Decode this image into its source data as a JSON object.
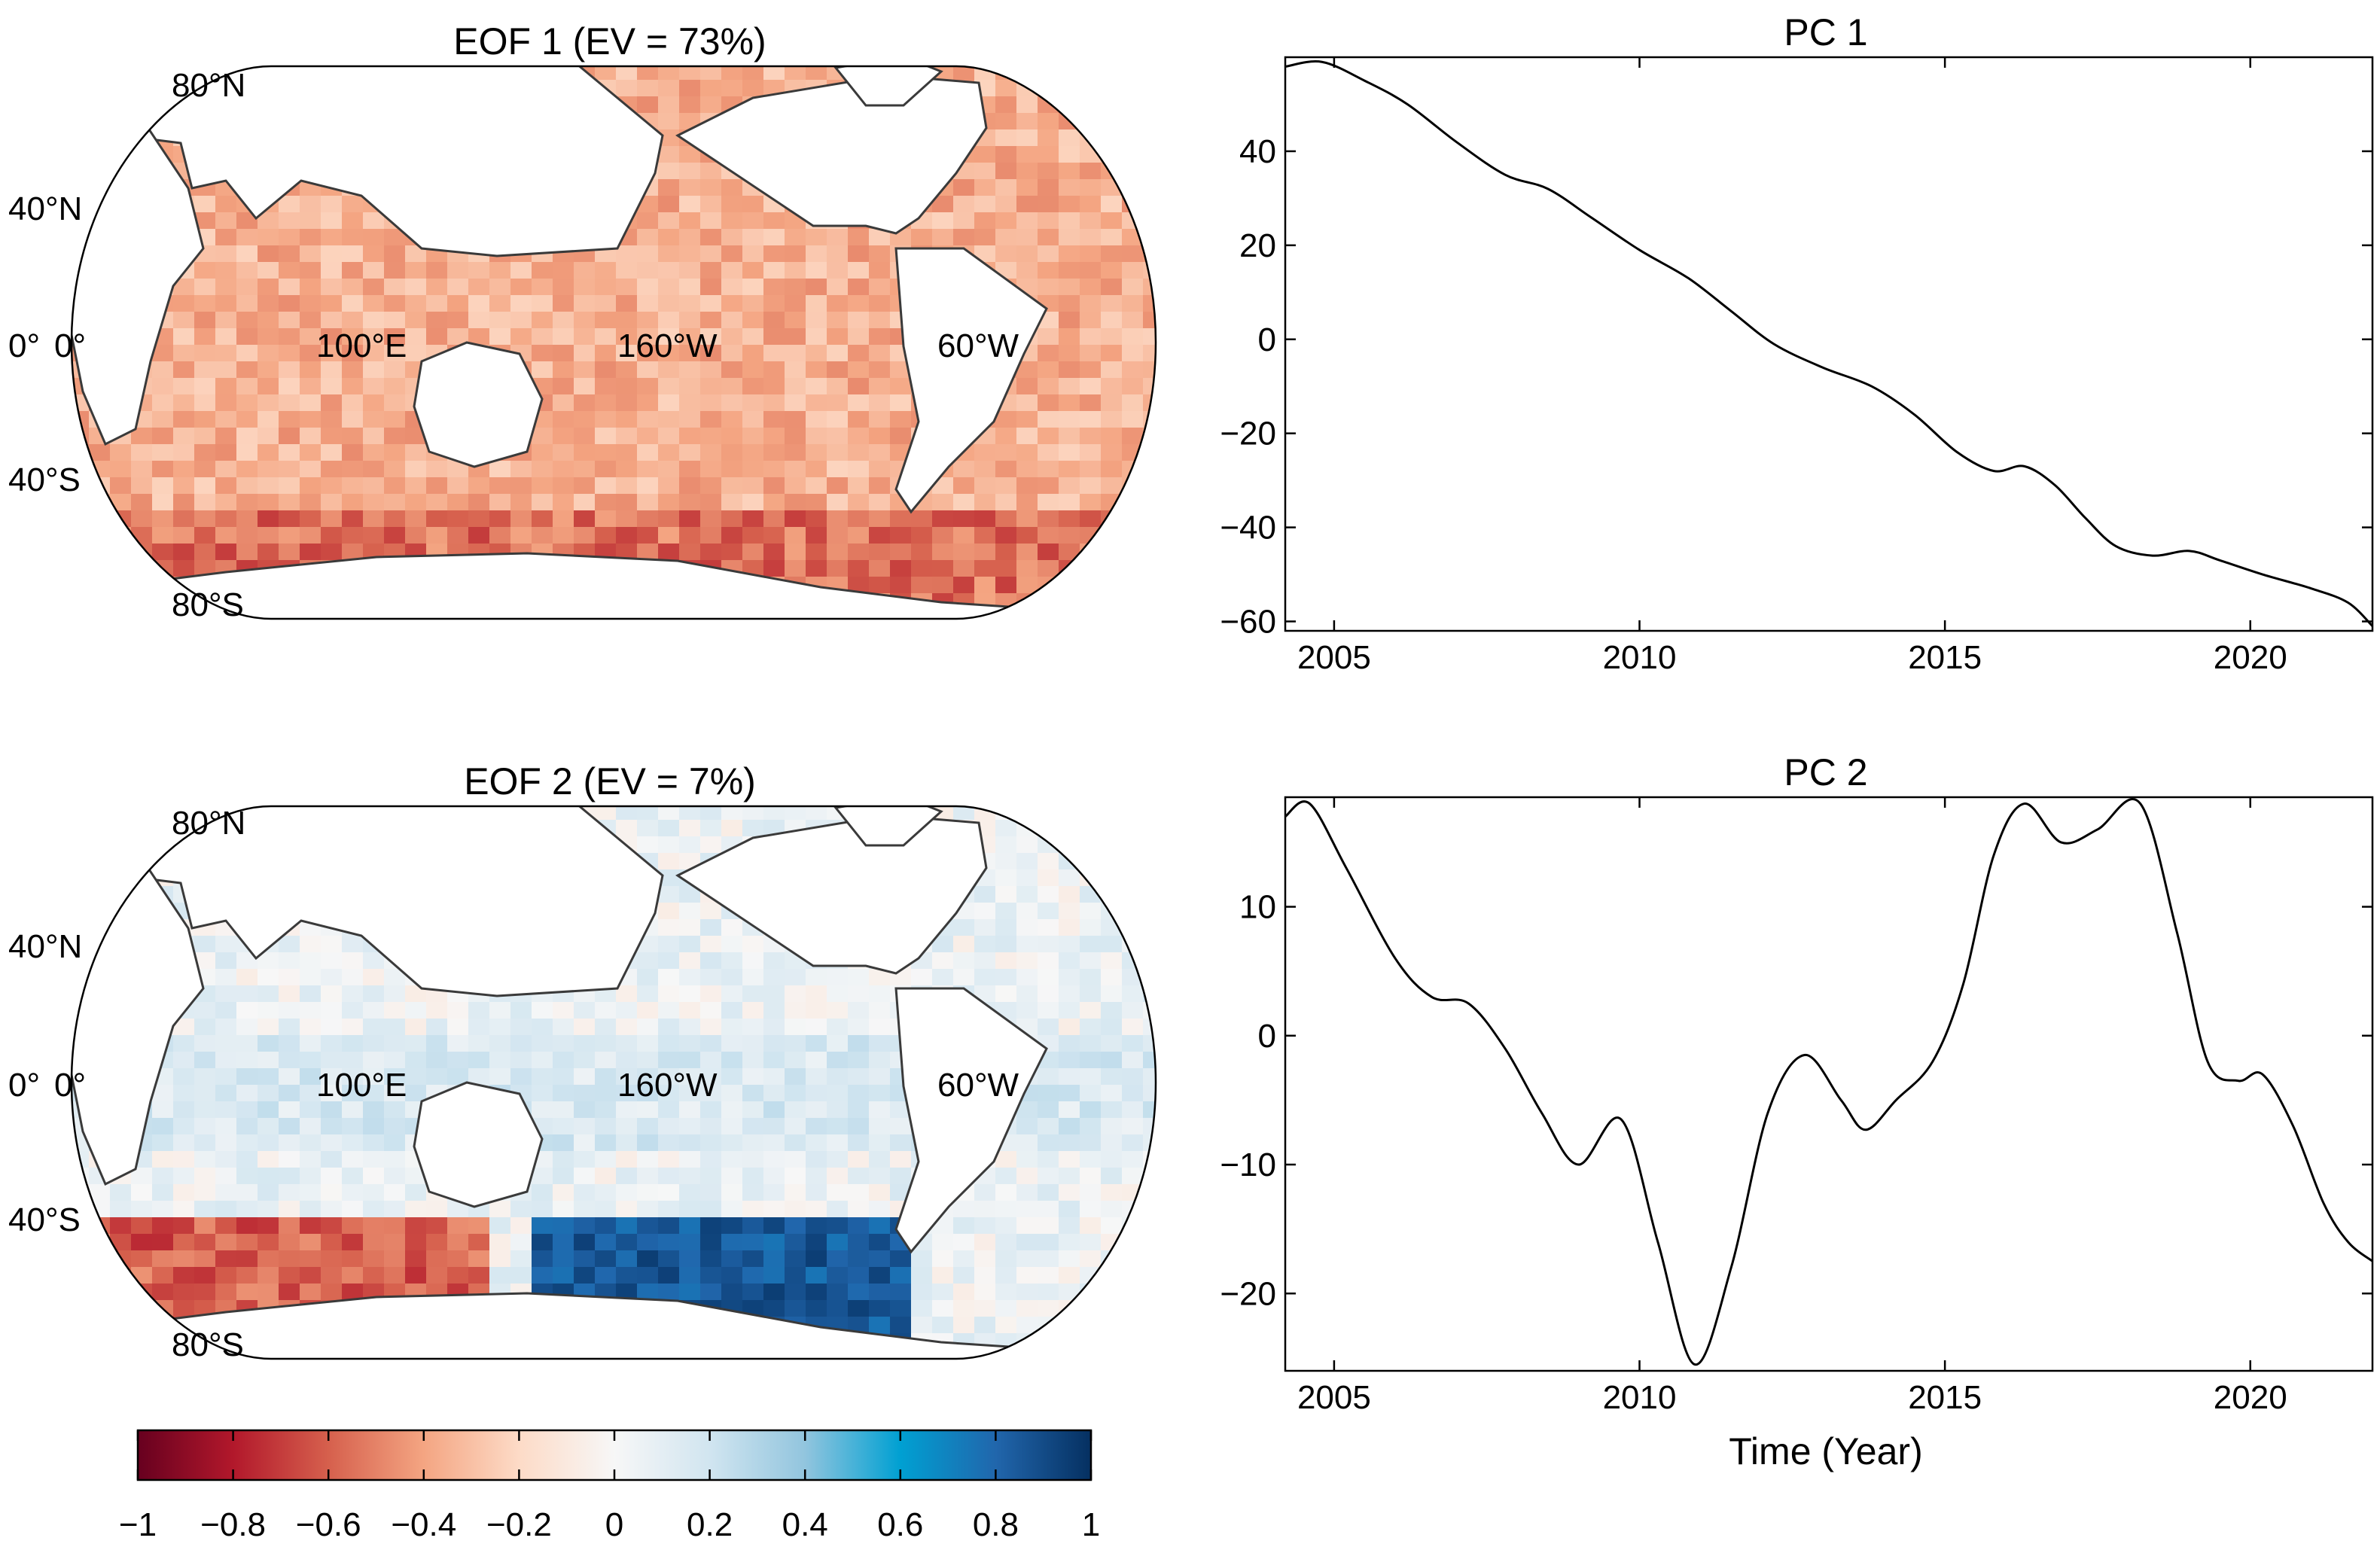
{
  "chart_data": [
    {
      "type": "map",
      "title": "EOF 1 (EV = 73%)",
      "lat_labels": [
        "80°N",
        "40°N",
        "0°",
        "40°S",
        "80°S"
      ],
      "lon_labels": [
        "0°",
        "100°E",
        "160°W",
        "60°W"
      ],
      "ocean_mean": -0.35,
      "colormap": "red-white-blue"
    },
    {
      "type": "map",
      "title": "EOF 2 (EV = 7%)",
      "lat_labels": [
        "80°N",
        "40°N",
        "0°",
        "40°S",
        "80°S"
      ],
      "lon_labels": [
        "0°",
        "100°E",
        "160°W",
        "60°W"
      ],
      "ocean_mean": 0.05,
      "colormap": "red-white-blue"
    },
    {
      "type": "line",
      "title": "PC 1",
      "xlabel": "",
      "ylabel": "",
      "xlim": [
        2004.2,
        2022
      ],
      "ylim": [
        -62,
        60
      ],
      "xticks": [
        2005,
        2010,
        2015,
        2020
      ],
      "yticks": [
        -60,
        -40,
        -20,
        0,
        20,
        40
      ],
      "x": [
        2004.2,
        2004.8,
        2005.5,
        2006.2,
        2007,
        2007.8,
        2008.5,
        2009.2,
        2010,
        2010.8,
        2011.5,
        2012.2,
        2013,
        2013.8,
        2014.5,
        2015.2,
        2015.8,
        2016.3,
        2016.8,
        2017.3,
        2017.8,
        2018.4,
        2019,
        2019.5,
        2020.2,
        2021,
        2021.6,
        2022
      ],
      "y": [
        58,
        59,
        55,
        50,
        42,
        35,
        32,
        26,
        19,
        13,
        6,
        -1,
        -6,
        -10,
        -16,
        -24,
        -28,
        -27,
        -31,
        -38,
        -44,
        -46,
        -45,
        -47,
        -50,
        -53,
        -56,
        -61
      ]
    },
    {
      "type": "line",
      "title": "PC 2",
      "xlabel": "Time (Year)",
      "ylabel": "",
      "xlim": [
        2004.2,
        2022
      ],
      "ylim": [
        -26,
        18.5
      ],
      "xticks": [
        2005,
        2010,
        2015,
        2020
      ],
      "yticks": [
        -20,
        -10,
        0,
        10
      ],
      "x": [
        2004.2,
        2004.6,
        2005.2,
        2006,
        2006.6,
        2007.2,
        2007.8,
        2008.4,
        2009,
        2009.7,
        2010.3,
        2010.9,
        2011.5,
        2012.1,
        2012.7,
        2013.3,
        2013.7,
        2014.2,
        2014.8,
        2015.3,
        2015.8,
        2016.3,
        2016.9,
        2017.5,
        2018.2,
        2018.8,
        2019.3,
        2019.8,
        2020.2,
        2020.7,
        2021.2,
        2021.6,
        2022
      ],
      "y": [
        17,
        18,
        13,
        6,
        3,
        2.5,
        -1,
        -6,
        -10,
        -6.5,
        -16,
        -25.5,
        -18,
        -6,
        -1.5,
        -5,
        -7.3,
        -5,
        -2,
        4,
        14,
        18,
        15,
        16,
        18,
        8,
        -2,
        -3.5,
        -3,
        -7,
        -13,
        -16,
        -17.5
      ]
    }
  ],
  "colorbar": {
    "ticks": [
      "−1",
      "−0.8",
      "−0.6",
      "−0.4",
      "−0.2",
      "0",
      "0.2",
      "0.4",
      "0.6",
      "0.8",
      "1"
    ],
    "colors": [
      "#67001f",
      "#b2182b",
      "#d6604d",
      "#f4a582",
      "#fddbc7",
      "#f7f7f7",
      "#d1e5f0",
      "#92c5de",
      "#00a0d2",
      "#2166ac",
      "#053061"
    ]
  }
}
